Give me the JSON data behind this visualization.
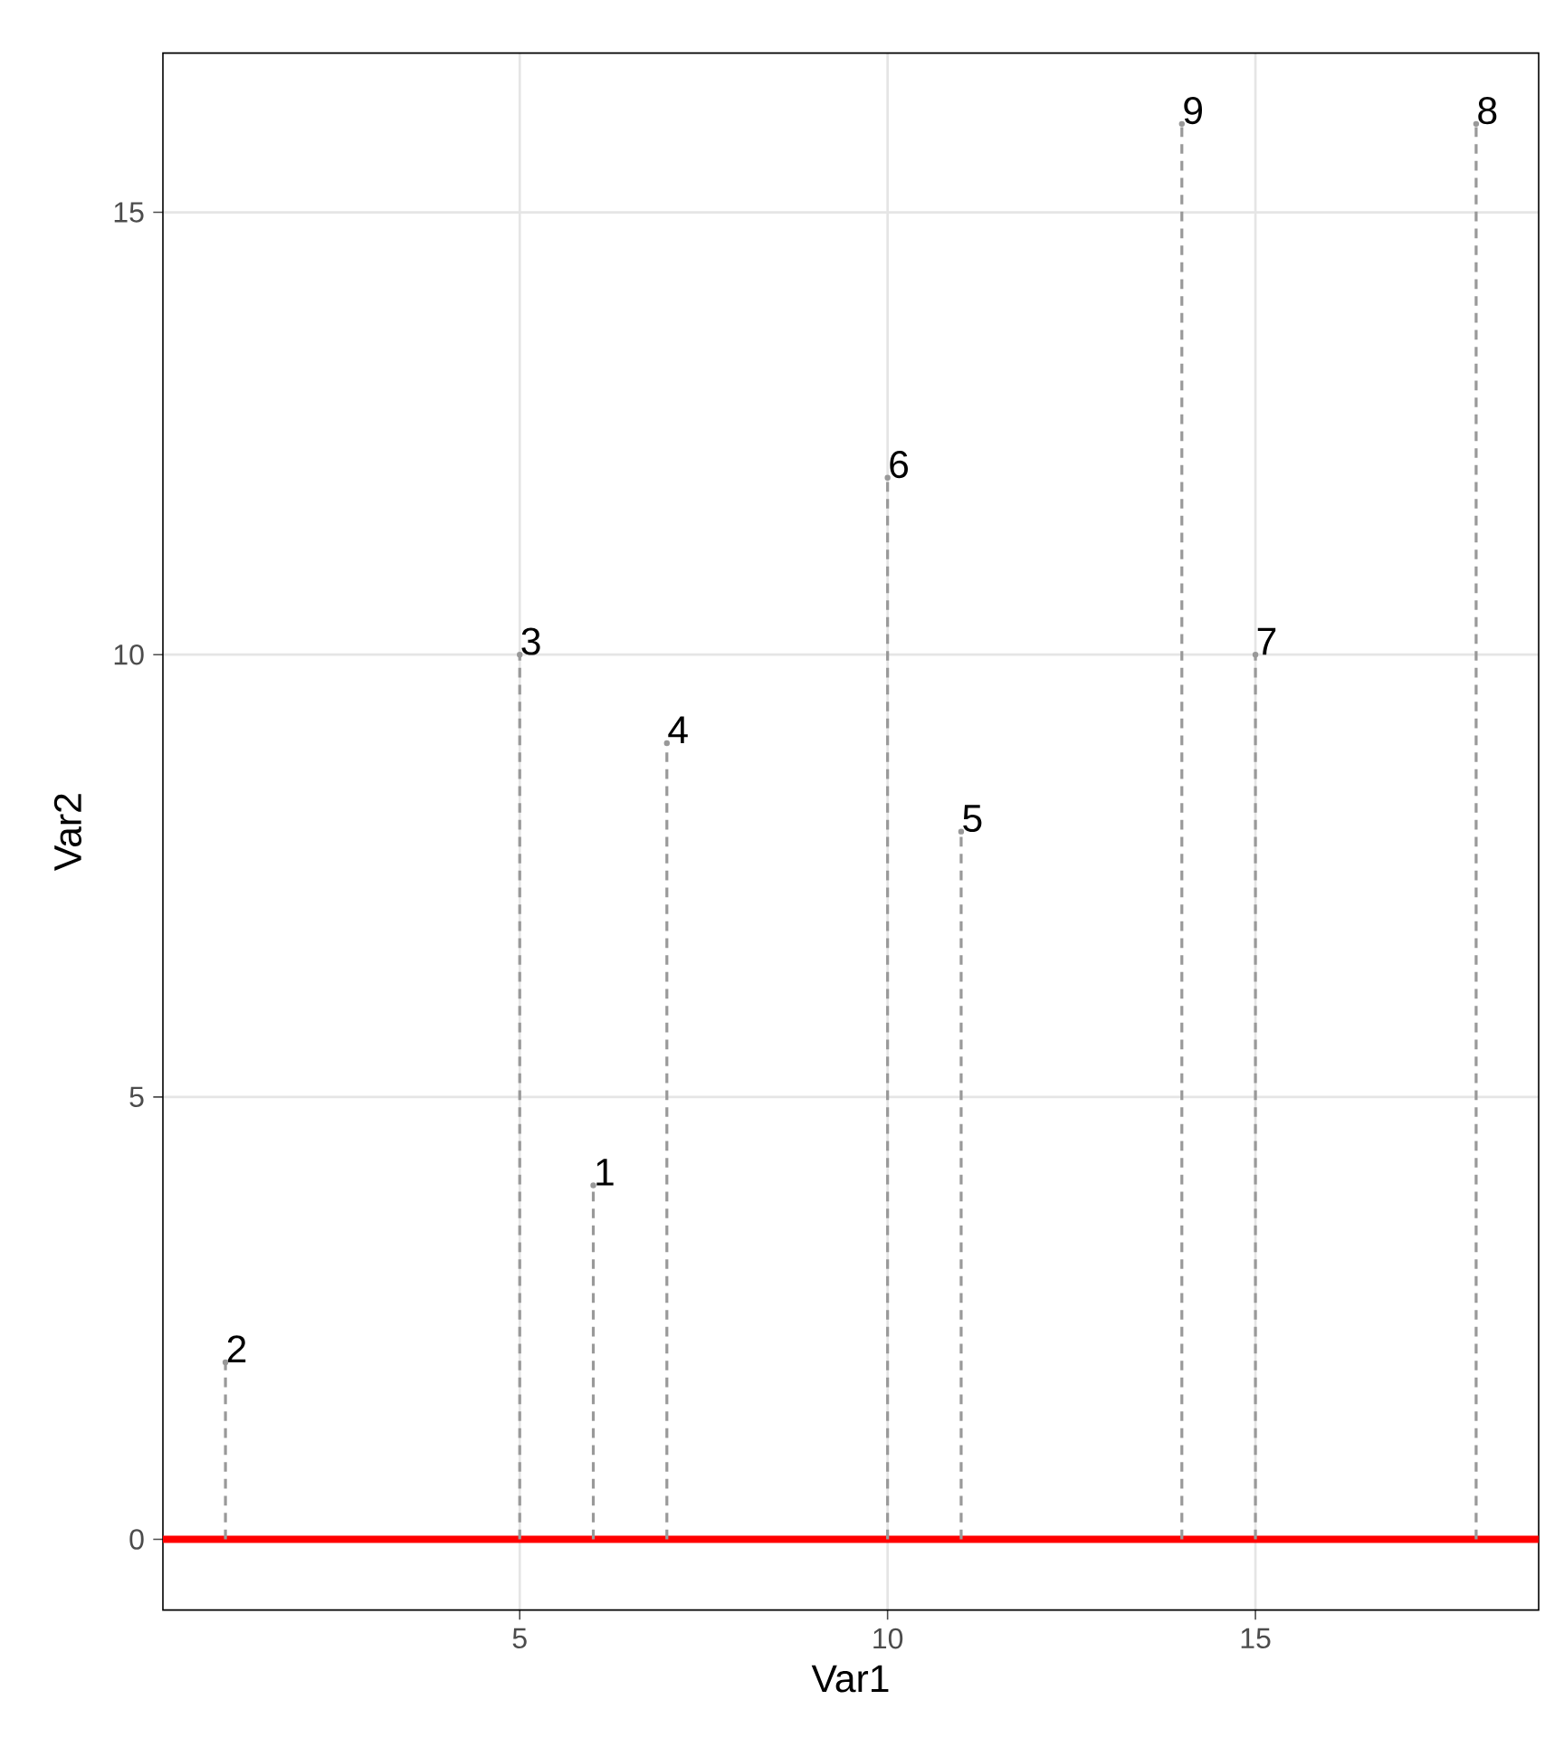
{
  "chart_data": {
    "type": "lollipop",
    "xlabel": "Var1",
    "ylabel": "Var2",
    "x": [
      6,
      1,
      5,
      7,
      11,
      10,
      15,
      18,
      14
    ],
    "values": [
      4,
      2,
      10,
      9,
      8,
      12,
      10,
      16,
      16
    ],
    "color": "#999999",
    "line_style": "dashed",
    "xlim": [
      0.15,
      18.85
    ],
    "ylim": [
      -0.8,
      16.8
    ],
    "xticks": [
      5,
      10,
      15
    ],
    "yticks": [
      0,
      5,
      10,
      15
    ],
    "grid": true,
    "ref_lines": [
      {
        "axis": "y",
        "value": 0,
        "color": "#ff0000",
        "line_style": "solid"
      }
    ],
    "annotations": [
      {
        "text": "1",
        "x": 6,
        "y": 4
      },
      {
        "text": "2",
        "x": 1,
        "y": 2
      },
      {
        "text": "3",
        "x": 5,
        "y": 10
      },
      {
        "text": "4",
        "x": 7,
        "y": 9
      },
      {
        "text": "5",
        "x": 11,
        "y": 8
      },
      {
        "text": "6",
        "x": 10,
        "y": 12
      },
      {
        "text": "7",
        "x": 15,
        "y": 10
      },
      {
        "text": "8",
        "x": 18,
        "y": 16
      },
      {
        "text": "9",
        "x": 14,
        "y": 16
      }
    ]
  }
}
